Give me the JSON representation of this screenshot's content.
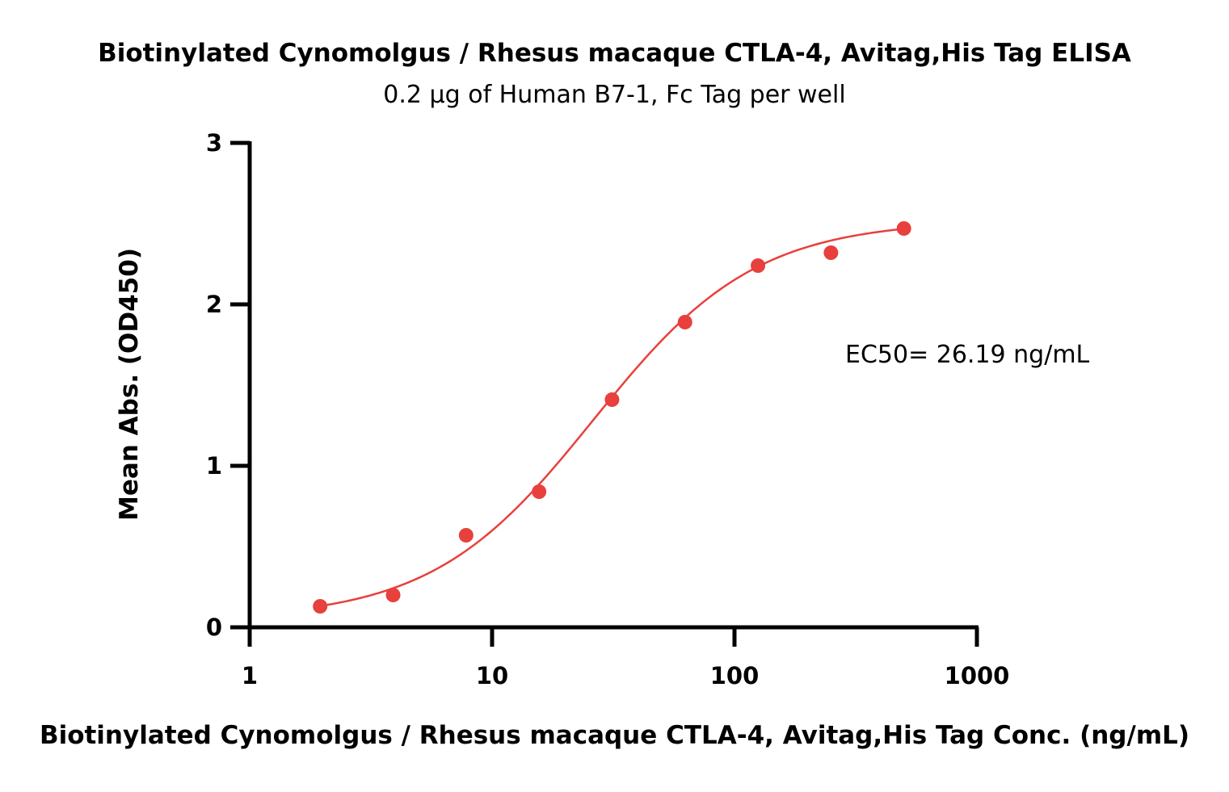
{
  "chart_data": {
    "type": "scatter",
    "title": "Biotinylated Cynomolgus / Rhesus macaque CTLA-4, Avitag,His Tag ELISA",
    "subtitle": "0.2 µg of Human B7-1, Fc Tag per well",
    "xlabel": "Biotinylated Cynomolgus / Rhesus macaque CTLA-4, Avitag,His Tag Conc. (ng/mL)",
    "ylabel": "Mean Abs. (OD450)",
    "x_scale": "log",
    "xlim": [
      1,
      1000
    ],
    "ylim": [
      0,
      3
    ],
    "x_ticks": [
      1,
      10,
      100,
      1000
    ],
    "x_tick_labels": [
      "1",
      "10",
      "100",
      "1000"
    ],
    "y_ticks": [
      0,
      1,
      2,
      3
    ],
    "y_tick_labels": [
      "0",
      "1",
      "2",
      "3"
    ],
    "grid": false,
    "series": [
      {
        "color": "#e8403c",
        "x": [
          1.953,
          3.906,
          7.8125,
          15.625,
          31.25,
          62.5,
          125,
          250,
          500
        ],
        "y": [
          0.13,
          0.2,
          0.57,
          0.84,
          1.41,
          1.89,
          2.24,
          2.32,
          2.47
        ]
      }
    ],
    "fit_curve": {
      "type": "4PL",
      "color": "#e8403c",
      "bottom": 0.05,
      "top": 2.52,
      "ec50": 26.19,
      "hill": 1.3,
      "x_range": [
        1.953,
        500
      ]
    },
    "annotations": [
      {
        "text": "EC50= 26.19 ng/mL"
      }
    ]
  }
}
